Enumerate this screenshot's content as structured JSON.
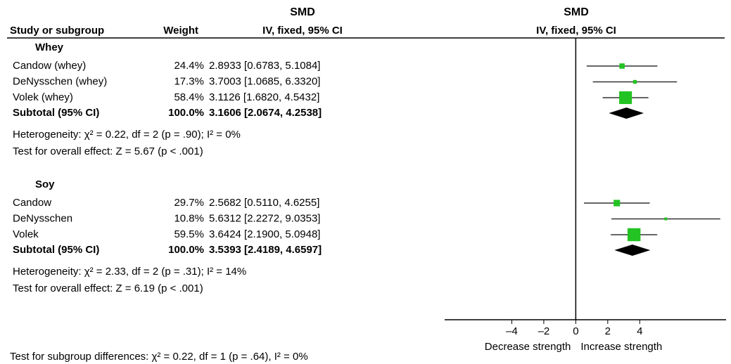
{
  "chart_data": {
    "type": "forest",
    "headers": {
      "study": "Study or subgroup",
      "weight": "Weight",
      "left_title": "SMD",
      "left_subtitle": "IV, fixed, 95% CI",
      "right_title": "SMD",
      "right_subtitle": "IV, fixed, 95% CI"
    },
    "groups": [
      {
        "name": "Whey",
        "studies": [
          {
            "name": "Candow (whey)",
            "weight": 24.4,
            "weight_label": "24.4%",
            "smd": 2.8933,
            "lower": 0.6783,
            "upper": 5.1084,
            "ci_label": "2.8933 [0.6783, 5.1084]"
          },
          {
            "name": "DeNysschen (whey)",
            "weight": 17.3,
            "weight_label": "17.3%",
            "smd": 3.7003,
            "lower": 1.0685,
            "upper": 6.332,
            "ci_label": "3.7003 [1.0685, 6.3320]"
          },
          {
            "name": "Volek (whey)",
            "weight": 58.4,
            "weight_label": "58.4%",
            "smd": 3.1126,
            "lower": 1.682,
            "upper": 4.5432,
            "ci_label": "3.1126 [1.6820, 4.5432]"
          }
        ],
        "subtotal": {
          "name": "Subtotal (95% CI)",
          "weight": 100.0,
          "weight_label": "100.0%",
          "smd": 3.1606,
          "lower": 2.0674,
          "upper": 4.2538,
          "ci_label": "3.1606 [2.0674, 4.2538]"
        },
        "heterogeneity": "Heterogeneity: χ² = 0.22, df = 2 (p = .90); I² = 0%",
        "overall_effect": "Test for overall effect: Z = 5.67 (p < .001)"
      },
      {
        "name": "Soy",
        "studies": [
          {
            "name": "Candow",
            "weight": 29.7,
            "weight_label": "29.7%",
            "smd": 2.5682,
            "lower": 0.511,
            "upper": 4.6255,
            "ci_label": "2.5682 [0.5110, 4.6255]"
          },
          {
            "name": "DeNysschen",
            "weight": 10.8,
            "weight_label": "10.8%",
            "smd": 5.6312,
            "lower": 2.2272,
            "upper": 9.0353,
            "ci_label": "5.6312 [2.2272, 9.0353]"
          },
          {
            "name": "Volek",
            "weight": 59.5,
            "weight_label": "59.5%",
            "smd": 3.6424,
            "lower": 2.19,
            "upper": 5.0948,
            "ci_label": "3.6424 [2.1900, 5.0948]"
          }
        ],
        "subtotal": {
          "name": "Subtotal (95% CI)",
          "weight": 100.0,
          "weight_label": "100.0%",
          "smd": 3.5393,
          "lower": 2.4189,
          "upper": 4.6597,
          "ci_label": "3.5393 [2.4189, 4.6597]"
        },
        "heterogeneity": "Heterogeneity: χ² = 2.33, df = 2 (p = .31); I² = 14%",
        "overall_effect": "Test for overall effect: Z = 6.19 (p < .001)"
      }
    ],
    "xlim": [
      -8.2,
      9.4
    ],
    "xticks": [
      {
        "value": -4,
        "label": "–4"
      },
      {
        "value": -2,
        "label": "–2"
      },
      0,
      2,
      4
    ],
    "xlabel_left": "Decrease strength",
    "xlabel_right": "Increase strength",
    "footer": "Test for subgroup differences: χ² = 0.22, df = 1 (p = .64), I² = 0%",
    "color": "#22c322"
  }
}
